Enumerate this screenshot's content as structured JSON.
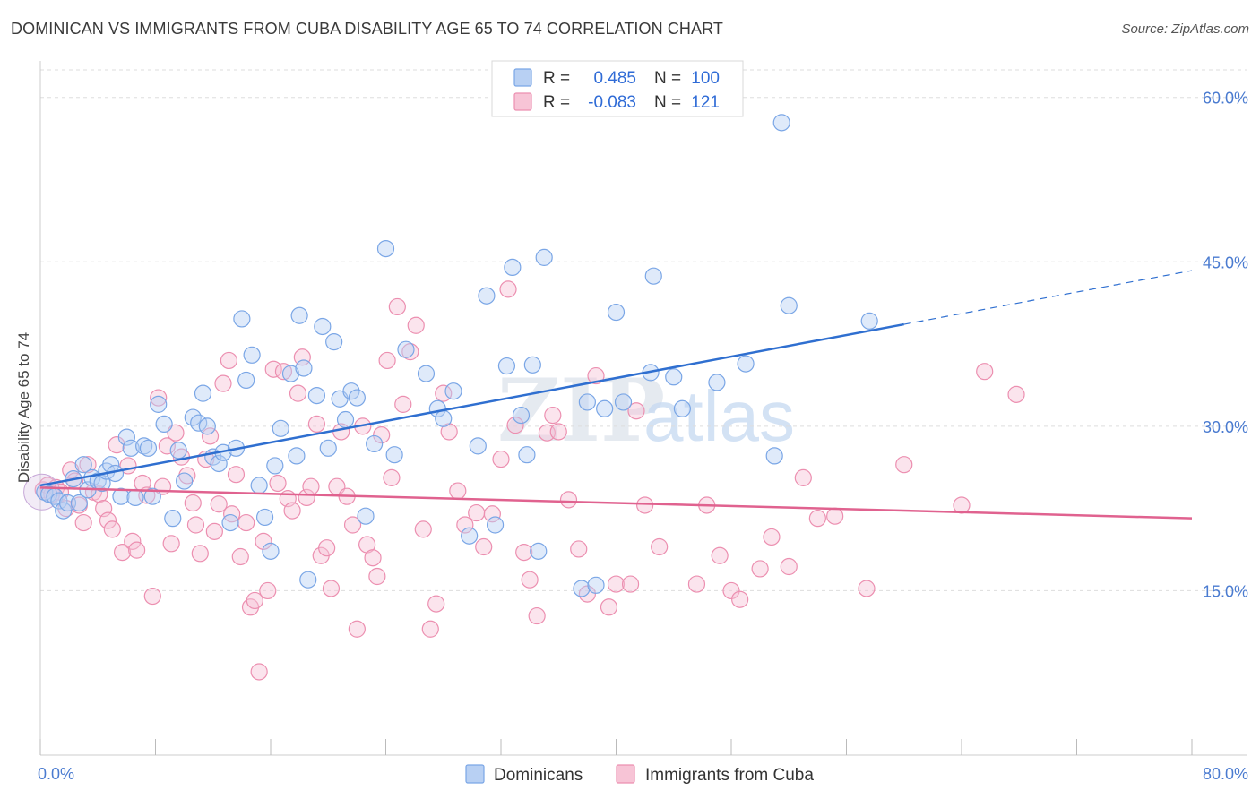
{
  "title": "DOMINICAN VS IMMIGRANTS FROM CUBA DISABILITY AGE 65 TO 74 CORRELATION CHART",
  "source": "Source: ZipAtlas.com",
  "watermark": {
    "zip": "ZIP",
    "atlas": "atlas"
  },
  "colors": {
    "blue": "#7aa6e6",
    "blue_fill": "#b8d0f3",
    "blue_line": "#2f6fd0",
    "pink": "#ec8fb0",
    "pink_fill": "#f7c4d6",
    "pink_line": "#e0628f",
    "grid": "#dddddd",
    "tick_text": "#4a7bd0"
  },
  "legend": {
    "r_label": "R =",
    "n_label": "N =",
    "rows": [
      {
        "r": "0.485",
        "n": "100"
      },
      {
        "r": "-0.083",
        "n": "121"
      }
    ]
  },
  "bottom_legend": [
    "Dominicans",
    "Immigrants from Cuba"
  ],
  "chart_data": {
    "type": "scatter",
    "xlabel": "",
    "ylabel": "Disability Age 65 to 74",
    "xlim": [
      0,
      80
    ],
    "ylim": [
      0,
      63
    ],
    "x_tick_labels": [
      "0.0%",
      "80.0%"
    ],
    "y_ticks": [
      15,
      30,
      45,
      60
    ],
    "y_tick_labels": [
      "15.0%",
      "30.0%",
      "45.0%",
      "60.0%"
    ],
    "grid": true,
    "legend_position": "top-center",
    "series": [
      {
        "name": "Dominicans",
        "trend": {
          "x0": 0,
          "y0": 24.6,
          "x1": 60,
          "y1": 39.3,
          "dash_to_x": 80,
          "dash_to_y": 44.2
        },
        "points": [
          [
            0.3,
            24
          ],
          [
            0.6,
            23.8
          ],
          [
            1,
            23.6
          ],
          [
            1.3,
            23.2
          ],
          [
            1.6,
            22.3
          ],
          [
            1.9,
            23
          ],
          [
            2.3,
            25.2
          ],
          [
            2.7,
            23
          ],
          [
            3,
            26.5
          ],
          [
            3.3,
            24.2
          ],
          [
            3.6,
            25.3
          ],
          [
            4,
            25
          ],
          [
            4.3,
            24.8
          ],
          [
            4.6,
            25.9
          ],
          [
            4.9,
            26.5
          ],
          [
            5.2,
            25.7
          ],
          [
            5.6,
            23.6
          ],
          [
            6,
            29
          ],
          [
            6.3,
            28
          ],
          [
            6.6,
            23.5
          ],
          [
            7.2,
            28.2
          ],
          [
            7.5,
            28
          ],
          [
            7.8,
            23.6
          ],
          [
            8.2,
            32
          ],
          [
            8.6,
            30.2
          ],
          [
            9.2,
            21.6
          ],
          [
            9.6,
            27.8
          ],
          [
            10,
            25
          ],
          [
            10.6,
            30.8
          ],
          [
            11,
            30.3
          ],
          [
            11.3,
            33
          ],
          [
            11.6,
            30
          ],
          [
            12,
            27.2
          ],
          [
            12.4,
            26.6
          ],
          [
            12.7,
            27.6
          ],
          [
            13.2,
            21.2
          ],
          [
            13.6,
            28
          ],
          [
            14,
            39.8
          ],
          [
            14.3,
            34.2
          ],
          [
            14.7,
            36.5
          ],
          [
            15.2,
            24.6
          ],
          [
            15.6,
            21.7
          ],
          [
            16,
            18.6
          ],
          [
            16.3,
            26.4
          ],
          [
            16.7,
            29.8
          ],
          [
            17.4,
            34.8
          ],
          [
            17.8,
            27.3
          ],
          [
            18,
            40.1
          ],
          [
            18.3,
            35.3
          ],
          [
            18.6,
            16
          ],
          [
            19.2,
            32.8
          ],
          [
            19.6,
            39.1
          ],
          [
            20,
            28
          ],
          [
            20.4,
            37.7
          ],
          [
            20.8,
            32.5
          ],
          [
            21.2,
            30.6
          ],
          [
            21.6,
            33.2
          ],
          [
            22,
            32.6
          ],
          [
            22.6,
            21.8
          ],
          [
            23.2,
            28.4
          ],
          [
            24,
            46.2
          ],
          [
            24.6,
            27.4
          ],
          [
            25.4,
            37
          ],
          [
            26.8,
            34.8
          ],
          [
            27.6,
            31.6
          ],
          [
            28,
            30.7
          ],
          [
            28.7,
            33.2
          ],
          [
            29.8,
            20
          ],
          [
            30.4,
            28.2
          ],
          [
            31,
            41.9
          ],
          [
            31.6,
            21
          ],
          [
            32.4,
            35.5
          ],
          [
            32.8,
            44.5
          ],
          [
            33.4,
            31
          ],
          [
            33.8,
            27.4
          ],
          [
            34.2,
            35.6
          ],
          [
            34.6,
            18.6
          ],
          [
            35,
            45.4
          ],
          [
            37.6,
            15.2
          ],
          [
            38,
            32.2
          ],
          [
            38.6,
            15.5
          ],
          [
            39.2,
            31.6
          ],
          [
            40.5,
            32.2
          ],
          [
            40,
            40.4
          ],
          [
            42.4,
            34.9
          ],
          [
            42.6,
            43.7
          ],
          [
            44,
            34.5
          ],
          [
            44.6,
            31.6
          ],
          [
            47,
            34
          ],
          [
            49,
            35.7
          ],
          [
            51,
            27.3
          ],
          [
            52,
            41
          ],
          [
            57.6,
            39.6
          ],
          [
            51.5,
            57.7
          ]
        ]
      },
      {
        "name": "Immigrants from Cuba",
        "trend": {
          "x0": 0,
          "y0": 24.4,
          "x1": 80,
          "y1": 21.6
        },
        "points": [
          [
            0.2,
            24.2
          ],
          [
            0.5,
            24.6
          ],
          [
            0.8,
            23.8
          ],
          [
            1.1,
            24.4
          ],
          [
            1.4,
            24
          ],
          [
            1.8,
            22.5
          ],
          [
            2.1,
            26
          ],
          [
            2.4,
            25
          ],
          [
            2.7,
            22.8
          ],
          [
            3,
            21.2
          ],
          [
            3.3,
            26.5
          ],
          [
            3.7,
            24
          ],
          [
            4.1,
            23.8
          ],
          [
            4.4,
            22.5
          ],
          [
            4.7,
            21.4
          ],
          [
            5,
            20.6
          ],
          [
            5.3,
            28.3
          ],
          [
            5.7,
            18.5
          ],
          [
            6.1,
            26.4
          ],
          [
            6.4,
            19.5
          ],
          [
            6.7,
            18.7
          ],
          [
            7.1,
            24.8
          ],
          [
            7.4,
            23.7
          ],
          [
            7.8,
            14.5
          ],
          [
            8.2,
            32.6
          ],
          [
            8.5,
            24.5
          ],
          [
            8.8,
            28.2
          ],
          [
            9.1,
            19.3
          ],
          [
            9.4,
            29.4
          ],
          [
            9.8,
            27.2
          ],
          [
            10.2,
            25.5
          ],
          [
            10.6,
            23
          ],
          [
            10.8,
            21
          ],
          [
            11.1,
            18.4
          ],
          [
            11.5,
            27
          ],
          [
            11.8,
            29.1
          ],
          [
            12.1,
            20.4
          ],
          [
            12.4,
            22.9
          ],
          [
            12.7,
            33.9
          ],
          [
            13.1,
            36
          ],
          [
            13.3,
            22
          ],
          [
            13.6,
            25.6
          ],
          [
            13.9,
            18.1
          ],
          [
            14.3,
            21.2
          ],
          [
            14.6,
            13.5
          ],
          [
            14.9,
            14.1
          ],
          [
            15.2,
            7.6
          ],
          [
            15.5,
            19.5
          ],
          [
            15.8,
            15
          ],
          [
            16.2,
            35.2
          ],
          [
            16.5,
            24.8
          ],
          [
            16.9,
            35
          ],
          [
            17.2,
            23.4
          ],
          [
            17.5,
            22.3
          ],
          [
            17.9,
            33
          ],
          [
            18.2,
            36.3
          ],
          [
            18.5,
            23.5
          ],
          [
            18.8,
            24.5
          ],
          [
            19.2,
            30.2
          ],
          [
            19.5,
            18.2
          ],
          [
            19.9,
            18.9
          ],
          [
            20.2,
            15.2
          ],
          [
            20.6,
            24.5
          ],
          [
            20.9,
            29.5
          ],
          [
            21.3,
            23.6
          ],
          [
            21.7,
            21
          ],
          [
            22,
            11.5
          ],
          [
            22.4,
            30
          ],
          [
            22.7,
            19.2
          ],
          [
            23.1,
            18
          ],
          [
            23.4,
            16.3
          ],
          [
            23.7,
            29.2
          ],
          [
            24.1,
            36
          ],
          [
            24.4,
            25.3
          ],
          [
            24.8,
            40.9
          ],
          [
            25.2,
            32
          ],
          [
            25.7,
            36.8
          ],
          [
            26.1,
            39.2
          ],
          [
            26.6,
            20.6
          ],
          [
            27.1,
            11.5
          ],
          [
            27.5,
            13.8
          ],
          [
            28,
            33
          ],
          [
            28.4,
            29.5
          ],
          [
            29,
            24.1
          ],
          [
            29.5,
            21
          ],
          [
            30.3,
            22.1
          ],
          [
            30.8,
            19
          ],
          [
            31.4,
            22
          ],
          [
            32,
            27
          ],
          [
            32.5,
            42.5
          ],
          [
            33,
            30.1
          ],
          [
            33.6,
            18.5
          ],
          [
            34,
            16
          ],
          [
            34.5,
            12.7
          ],
          [
            35.2,
            29.4
          ],
          [
            35.6,
            31
          ],
          [
            36,
            29.5
          ],
          [
            36.7,
            23.3
          ],
          [
            37.4,
            18.8
          ],
          [
            38,
            14.7
          ],
          [
            38.6,
            34.6
          ],
          [
            39.5,
            13.5
          ],
          [
            40,
            15.6
          ],
          [
            41,
            15.6
          ],
          [
            41.4,
            31.4
          ],
          [
            42,
            22.8
          ],
          [
            43,
            19
          ],
          [
            45.6,
            15.6
          ],
          [
            46.3,
            22.8
          ],
          [
            47.2,
            18.2
          ],
          [
            48,
            15
          ],
          [
            48.6,
            14.2
          ],
          [
            50,
            17
          ],
          [
            50.8,
            19.9
          ],
          [
            52,
            17.2
          ],
          [
            53,
            25.3
          ],
          [
            54,
            21.6
          ],
          [
            55.2,
            21.8
          ],
          [
            57.4,
            15.2
          ],
          [
            60,
            26.5
          ],
          [
            64,
            22.8
          ],
          [
            65.6,
            35
          ],
          [
            67.8,
            32.9
          ]
        ]
      }
    ]
  }
}
